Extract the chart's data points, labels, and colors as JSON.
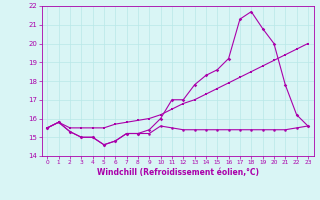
{
  "xlabel": "Windchill (Refroidissement éolien,°C)",
  "xlim": [
    -0.5,
    23.5
  ],
  "ylim": [
    14,
    22
  ],
  "yticks": [
    14,
    15,
    16,
    17,
    18,
    19,
    20,
    21,
    22
  ],
  "xticks": [
    0,
    1,
    2,
    3,
    4,
    5,
    6,
    7,
    8,
    9,
    10,
    11,
    12,
    13,
    14,
    15,
    16,
    17,
    18,
    19,
    20,
    21,
    22,
    23
  ],
  "bg_color": "#d9f5f5",
  "line_color": "#aa00aa",
  "grid_color": "#b8e8e8",
  "line1_x": [
    0,
    1,
    2,
    3,
    4,
    5,
    6,
    7,
    8,
    9,
    10,
    11,
    12,
    13,
    14,
    15,
    16,
    17,
    18,
    19,
    20,
    21,
    22,
    23
  ],
  "line1_y": [
    15.5,
    15.8,
    15.3,
    15.0,
    15.0,
    14.6,
    14.8,
    15.2,
    15.2,
    15.2,
    15.6,
    15.5,
    15.4,
    15.4,
    15.4,
    15.4,
    15.4,
    15.4,
    15.4,
    15.4,
    15.4,
    15.4,
    15.5,
    15.6
  ],
  "line2_x": [
    0,
    1,
    2,
    3,
    4,
    5,
    6,
    7,
    8,
    9,
    10,
    11,
    12,
    13,
    14,
    15,
    16,
    17,
    18,
    19,
    20,
    21,
    22,
    23
  ],
  "line2_y": [
    15.5,
    15.8,
    15.3,
    15.0,
    15.0,
    14.6,
    14.8,
    15.2,
    15.2,
    15.4,
    16.0,
    17.0,
    17.0,
    17.8,
    18.3,
    18.6,
    19.2,
    21.3,
    21.7,
    20.8,
    20.0,
    17.8,
    16.2,
    15.6
  ],
  "line3_x": [
    0,
    1,
    2,
    3,
    4,
    5,
    6,
    7,
    8,
    9,
    10,
    11,
    12,
    13,
    14,
    15,
    16,
    17,
    18,
    19,
    20,
    21,
    22,
    23
  ],
  "line3_y": [
    15.5,
    15.8,
    15.5,
    15.5,
    15.5,
    15.5,
    15.7,
    15.8,
    15.9,
    16.0,
    16.2,
    16.5,
    16.8,
    17.0,
    17.3,
    17.6,
    17.9,
    18.2,
    18.5,
    18.8,
    19.1,
    19.4,
    19.7,
    20.0
  ]
}
